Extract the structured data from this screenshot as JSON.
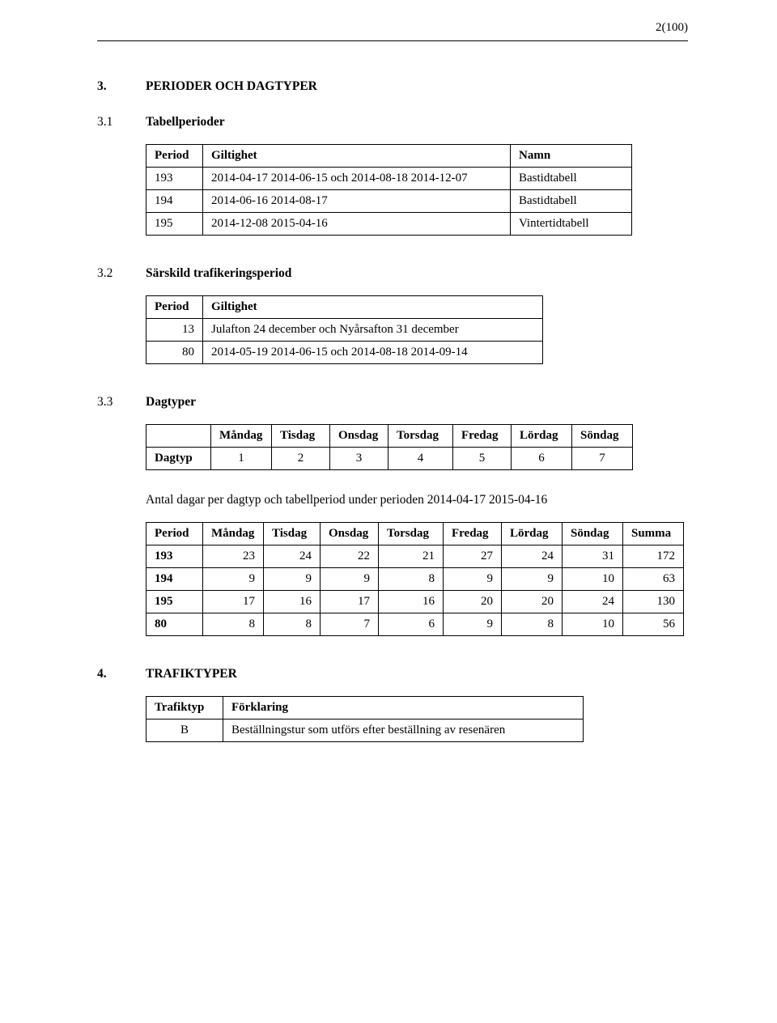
{
  "page_label": "2(100)",
  "s3": {
    "num": "3.",
    "title": "PERIODER OCH DAGTYPER"
  },
  "s31": {
    "num": "3.1",
    "title": "Tabellperioder",
    "headers": [
      "Period",
      "Giltighet",
      "Namn"
    ],
    "rows": [
      [
        "193",
        "2014-04-17  2014-06-15 och 2014-08-18  2014-12-07",
        "Bastidtabell"
      ],
      [
        "194",
        "2014-06-16  2014-08-17",
        "Bastidtabell"
      ],
      [
        "195",
        "2014-12-08  2015-04-16",
        "Vintertidtabell"
      ]
    ],
    "col_widths": [
      "70px",
      "380px",
      "150px"
    ]
  },
  "s32": {
    "num": "3.2",
    "title": "Särskild trafikeringsperiod",
    "headers": [
      "Period",
      "Giltighet"
    ],
    "rows": [
      [
        "13",
        "Julafton 24 december och Nyårsafton 31 december"
      ],
      [
        "80",
        "2014-05-19  2014-06-15 och 2014-08-18  2014-09-14"
      ]
    ],
    "col_widths": [
      "70px",
      "420px"
    ]
  },
  "s33": {
    "num": "3.3",
    "title": "Dagtyper",
    "headers": [
      "",
      "Måndag",
      "Tisdag",
      "Onsdag",
      "Torsdag",
      "Fredag",
      "Lördag",
      "Söndag"
    ],
    "row_label": "Dagtyp",
    "row_values": [
      "1",
      "2",
      "3",
      "4",
      "5",
      "6",
      "7"
    ],
    "col_widths": [
      "80px",
      "75px",
      "72px",
      "72px",
      "80px",
      "72px",
      "75px",
      "75px"
    ],
    "caption": "Antal dagar per dagtyp och tabellperiod under perioden 2014-04-17  2015-04-16",
    "t2_headers": [
      "Period",
      "Måndag",
      "Tisdag",
      "Onsdag",
      "Torsdag",
      "Fredag",
      "Lördag",
      "Söndag",
      "Summa"
    ],
    "t2_rows": [
      [
        "193",
        "23",
        "24",
        "22",
        "21",
        "27",
        "24",
        "31",
        "172"
      ],
      [
        "194",
        "9",
        "9",
        "9",
        "8",
        "9",
        "9",
        "10",
        "63"
      ],
      [
        "195",
        "17",
        "16",
        "17",
        "16",
        "20",
        "20",
        "24",
        "130"
      ],
      [
        "80",
        "8",
        "8",
        "7",
        "6",
        "9",
        "8",
        "10",
        "56"
      ]
    ],
    "t2_col_widths": [
      "70px",
      "75px",
      "70px",
      "72px",
      "80px",
      "72px",
      "75px",
      "75px",
      "75px"
    ]
  },
  "s4": {
    "num": "4.",
    "title": "TRAFIKTYPER",
    "headers": [
      "Trafiktyp",
      "Förklaring"
    ],
    "rows": [
      [
        "B",
        "Beställningstur som utförs efter beställning av resenären"
      ]
    ],
    "col_widths": [
      "95px",
      "445px"
    ]
  }
}
